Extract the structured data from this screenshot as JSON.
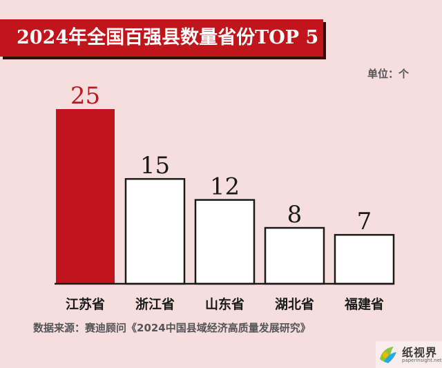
{
  "header": {
    "title": "2024年全国百强县数量省份TOP 5"
  },
  "unit_label": "单位：个",
  "source": "数据来源：赛迪顾问《2024中国县域经济高质量发展研究》",
  "logo": {
    "name": "纸视界",
    "url": "paperinsight.net"
  },
  "colors": {
    "highlight": "#c1151c",
    "bar_fill": "#ffffff",
    "outline": "#1a1a1a",
    "background": "#f6dede"
  },
  "chart_data": {
    "type": "bar",
    "categories": [
      "江苏省",
      "浙江省",
      "山东省",
      "湖北省",
      "福建省"
    ],
    "values": [
      25,
      15,
      12,
      8,
      7
    ],
    "ylim": [
      0,
      25
    ],
    "highlight_index": 0,
    "grid": false,
    "legend": "none"
  }
}
